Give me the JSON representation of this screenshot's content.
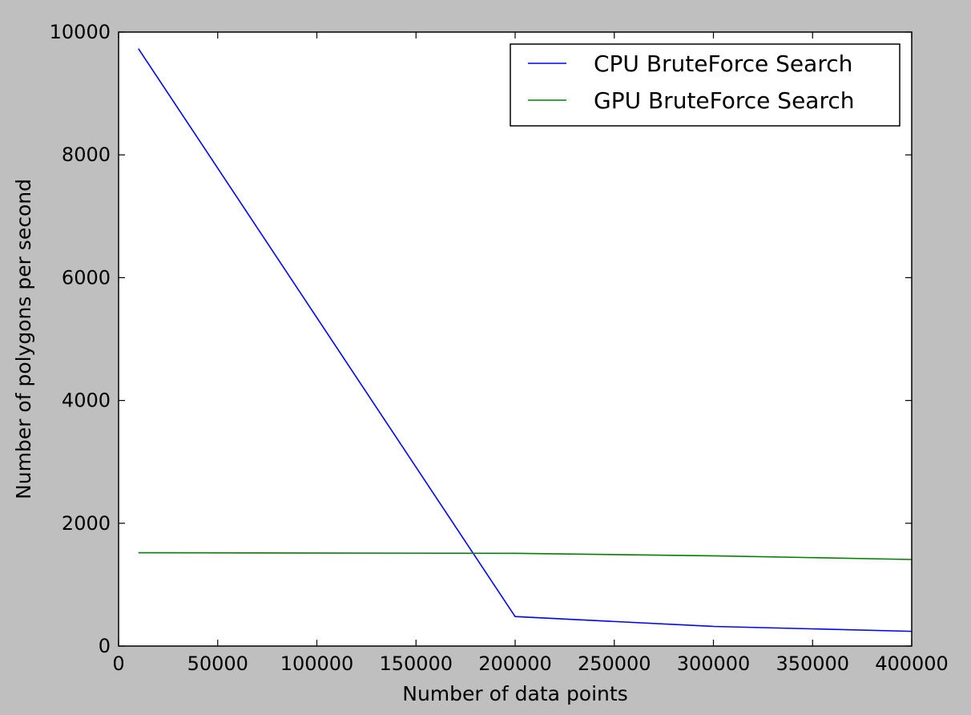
{
  "chart_data": {
    "type": "line",
    "title": "",
    "xlabel": "Number of data points",
    "ylabel": "Number of polygons per second",
    "xlim": [
      0,
      400000
    ],
    "ylim": [
      0,
      10000
    ],
    "xticks": [
      0,
      50000,
      100000,
      150000,
      200000,
      250000,
      300000,
      350000,
      400000
    ],
    "xtick_labels": [
      "0",
      "50000",
      "100000",
      "150000",
      "200000",
      "250000",
      "300000",
      "350000",
      "400000"
    ],
    "yticks": [
      0,
      2000,
      4000,
      6000,
      8000,
      10000
    ],
    "ytick_labels": [
      "0",
      "2000",
      "4000",
      "6000",
      "8000",
      "10000"
    ],
    "grid": false,
    "legend": "top-right",
    "series": [
      {
        "name": "CPU BruteForce Search",
        "color": "#0000ff",
        "x": [
          10000,
          200000,
          300000,
          400000
        ],
        "y": [
          9730,
          480,
          320,
          240
        ]
      },
      {
        "name": "GPU BruteForce Search",
        "color": "#008000",
        "x": [
          10000,
          200000,
          300000,
          400000
        ],
        "y": [
          1520,
          1510,
          1470,
          1410
        ]
      }
    ]
  }
}
